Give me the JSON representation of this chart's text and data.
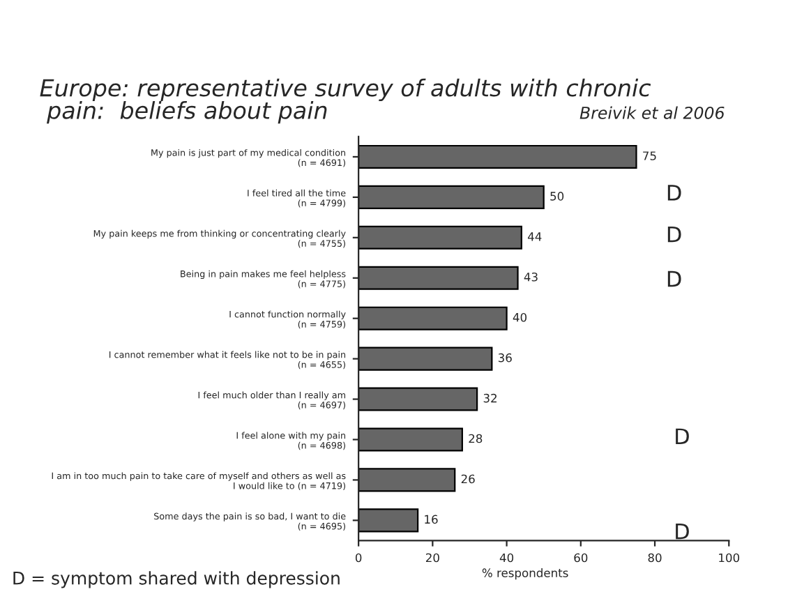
{
  "chart_data": {
    "type": "bar",
    "orientation": "horizontal",
    "title": "Europe: representative survey of adults with chronic\n pain:  beliefs about pain",
    "subtitle": "Breivik et al 2006",
    "categories": [
      "My pain is just part of my medical condition\n(n = 4691)",
      "I feel tired all the time\n(n = 4799)",
      "My pain keeps me from thinking or concentrating clearly\n(n = 4755)",
      "Being in pain makes me feel helpless\n(n = 4775)",
      "I cannot function normally\n(n = 4759)",
      "I cannot remember what it feels like not to be in pain\n(n = 4655)",
      "I feel much older than I really am\n(n = 4697)",
      "I feel alone with my pain\n(n = 4698)",
      "I am in too much pain to take care of myself and others as well as\nI would like to (n = 4719)",
      "Some days the pain is so bad, I want to die\n(n = 4695)"
    ],
    "values": [
      75,
      50,
      44,
      43,
      40,
      36,
      32,
      28,
      26,
      16
    ],
    "color": "#666666",
    "data_labels": true,
    "xlabel": "% respondents",
    "xlim": [
      0,
      100
    ],
    "xticks": [
      0,
      20,
      40,
      60,
      80,
      100
    ],
    "grid": false,
    "annotations": [
      "D",
      "D",
      "D",
      "D",
      "D",
      "D = symptom shared with depression"
    ]
  }
}
